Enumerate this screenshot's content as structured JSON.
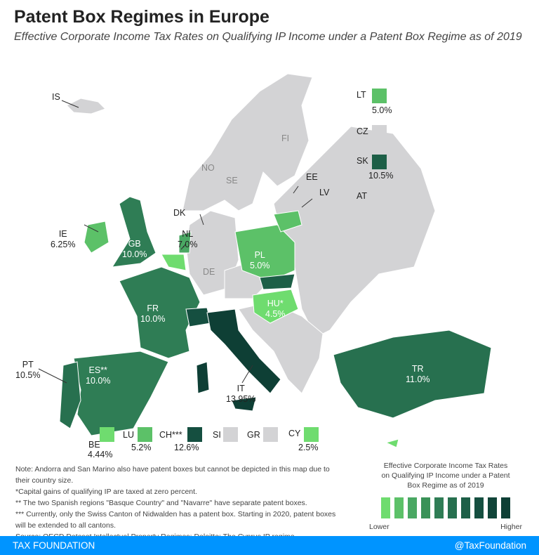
{
  "title": "Patent Box Regimes in Europe",
  "subtitle": "Effective Corporate Income Tax Rates on Qualifying IP Income under a Patent Box Regime as of 2019",
  "colors": {
    "none": "#d3d3d5",
    "c1": "#6fdc6f",
    "c2": "#5cc168",
    "c3": "#4aa863",
    "c4": "#3a9258",
    "c5": "#2f7d55",
    "c6": "#27704f",
    "c7": "#1d5f47",
    "c8": "#154f40",
    "c9": "#0e3f35"
  },
  "countries": {
    "IS": {
      "code": "IS"
    },
    "FI": {
      "code": "FI"
    },
    "NO": {
      "code": "NO"
    },
    "SE": {
      "code": "SE"
    },
    "DK": {
      "code": "DK"
    },
    "DE": {
      "code": "DE"
    },
    "EE": {
      "code": "EE"
    },
    "LV": {
      "code": "LV"
    },
    "CZ": {
      "code": "CZ"
    },
    "AT": {
      "code": "AT"
    },
    "SI": {
      "code": "SI"
    },
    "GR": {
      "code": "GR"
    },
    "IE": {
      "code": "IE",
      "rate": "6.25%"
    },
    "GB": {
      "code": "GB",
      "rate": "10.0%"
    },
    "NL": {
      "code": "NL",
      "rate": "7.0%"
    },
    "PL": {
      "code": "PL",
      "rate": "5.0%"
    },
    "HU": {
      "code": "HU*",
      "rate": "4.5%"
    },
    "FR": {
      "code": "FR",
      "rate": "10.0%"
    },
    "PT": {
      "code": "PT",
      "rate": "10.5%"
    },
    "ES": {
      "code": "ES**",
      "rate": "10.0%"
    },
    "IT": {
      "code": "IT",
      "rate": "13.95%"
    },
    "TR": {
      "code": "TR",
      "rate": "11.0%"
    },
    "LT": {
      "code": "LT",
      "rate": "5.0%"
    },
    "SK": {
      "code": "SK",
      "rate": "10.5%"
    },
    "BE": {
      "code": "BE",
      "rate": "4.44%"
    },
    "LU": {
      "code": "LU",
      "rate": "5.2%"
    },
    "CH": {
      "code": "CH***",
      "rate": "12.6%"
    },
    "CY": {
      "code": "CY",
      "rate": "2.5%"
    }
  },
  "notes": [
    "Note: Andorra and San Marino also have patent boxes but cannot be depicted in this map due to their country size.",
    "*Capital gains of qualifying IP are taxed at zero percent.",
    "** The two Spanish regions \"Basque Country\" and \"Navarre\" have separate patent boxes.",
    "*** Currently, only the Swiss Canton of Nidwalden has a patent box. Starting in 2020, patent boxes will be extended to all cantons.",
    "Source: OECD Dataset Intellectual Property Regimes; Deloitte: The Cyprus IP regime"
  ],
  "legend": {
    "title": "Effective Corporate Income Tax Rates on Qualifying IP Income under a Patent Box Regime as of 2019",
    "low": "Lower",
    "high": "Higher"
  },
  "footer": {
    "left": "TAX FOUNDATION",
    "right": "@TaxFoundation"
  }
}
